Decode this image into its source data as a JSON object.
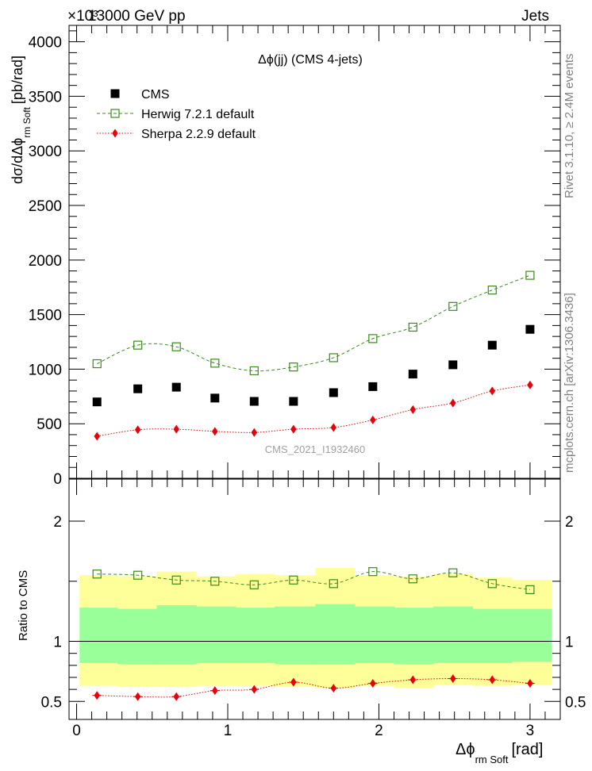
{
  "header": {
    "energy_label": "13000 GeV pp",
    "process_label": "Jets",
    "exponent_label": "×10³"
  },
  "side_labels": {
    "rivet": "Rivet 3.1.10, ≥ 2.4M events",
    "mcplots": "mcplots.cern.ch [arXiv:1306.3436]"
  },
  "watermark": "CMS_2021_I1932460",
  "chart_data": [
    {
      "type": "scatter",
      "title": "Δϕ(jj) (CMS 4-jets)",
      "ylabel": "dσ/dΔϕ",
      "ylabel_sub": "rm Soft",
      "ylabel_unit": "[pb/rad]",
      "y_multiplier": "×10³",
      "xlim": [
        -0.05,
        3.2
      ],
      "ylim": [
        0,
        4150
      ],
      "y_ticks": [
        0,
        500,
        1000,
        1500,
        2000,
        2500,
        3000,
        3500,
        4000
      ],
      "legend_position": "top-left",
      "x": [
        0.135,
        0.405,
        0.66,
        0.915,
        1.175,
        1.435,
        1.7,
        1.96,
        2.225,
        2.49,
        2.75,
        3.0
      ],
      "series": [
        {
          "name": "CMS",
          "marker": "filled-square",
          "color": "#000000",
          "values": [
            700,
            820,
            835,
            735,
            705,
            705,
            785,
            840,
            955,
            1040,
            1220,
            1365
          ]
        },
        {
          "name": "Herwig 7.2.1 default",
          "marker": "open-square",
          "color": "#3a8a1a",
          "line": "dashed",
          "values": [
            1050,
            1220,
            1205,
            1055,
            985,
            1020,
            1105,
            1280,
            1385,
            1575,
            1725,
            1860
          ]
        },
        {
          "name": "Sherpa 2.2.9 default",
          "marker": "filled-diamond",
          "color": "#e8000b",
          "line": "dotted",
          "values": [
            385,
            445,
            450,
            430,
            420,
            450,
            465,
            535,
            630,
            690,
            800,
            855
          ]
        }
      ]
    },
    {
      "type": "scatter",
      "ylabel": "Ratio to CMS",
      "xlabel": "Δϕ",
      "xlabel_sub": "rm Soft",
      "xlabel_unit": "[rad]",
      "xlim": [
        -0.05,
        3.2
      ],
      "ylim": [
        0.35,
        2.35
      ],
      "x_ticks": [
        0,
        1,
        2,
        3
      ],
      "y_ticks": [
        0.5,
        1,
        2
      ],
      "y_tick_labels": [
        "0.5",
        "1",
        "2"
      ],
      "x_edges": [
        0.02,
        0.27,
        0.53,
        0.79,
        1.05,
        1.31,
        1.58,
        1.84,
        2.1,
        2.36,
        2.62,
        2.88,
        3.14
      ],
      "uncertainty_bands": [
        {
          "name": "total",
          "color": "#ffff99",
          "low": [
            0.63,
            0.62,
            0.62,
            0.63,
            0.63,
            0.62,
            0.61,
            0.63,
            0.61,
            0.64,
            0.63,
            0.64
          ],
          "high": [
            1.55,
            1.54,
            1.58,
            1.54,
            1.56,
            1.55,
            1.61,
            1.55,
            1.54,
            1.56,
            1.53,
            1.51
          ]
        },
        {
          "name": "statistical",
          "color": "#99ff99",
          "low": [
            0.82,
            0.81,
            0.81,
            0.82,
            0.82,
            0.81,
            0.81,
            0.82,
            0.81,
            0.82,
            0.82,
            0.83
          ],
          "high": [
            1.28,
            1.27,
            1.3,
            1.29,
            1.28,
            1.29,
            1.31,
            1.29,
            1.28,
            1.29,
            1.27,
            1.27
          ]
        }
      ],
      "series": [
        {
          "name": "Herwig 7.2.1 default",
          "marker": "open-square",
          "color": "#3a8a1a",
          "line": "dashed",
          "values": [
            1.56,
            1.55,
            1.51,
            1.5,
            1.47,
            1.51,
            1.48,
            1.58,
            1.52,
            1.57,
            1.48,
            1.43
          ]
        },
        {
          "name": "Sherpa 2.2.9 default",
          "marker": "filled-diamond",
          "color": "#e8000b",
          "line": "dotted",
          "values": [
            0.55,
            0.54,
            0.54,
            0.59,
            0.6,
            0.66,
            0.61,
            0.65,
            0.68,
            0.69,
            0.68,
            0.65
          ]
        }
      ]
    }
  ]
}
